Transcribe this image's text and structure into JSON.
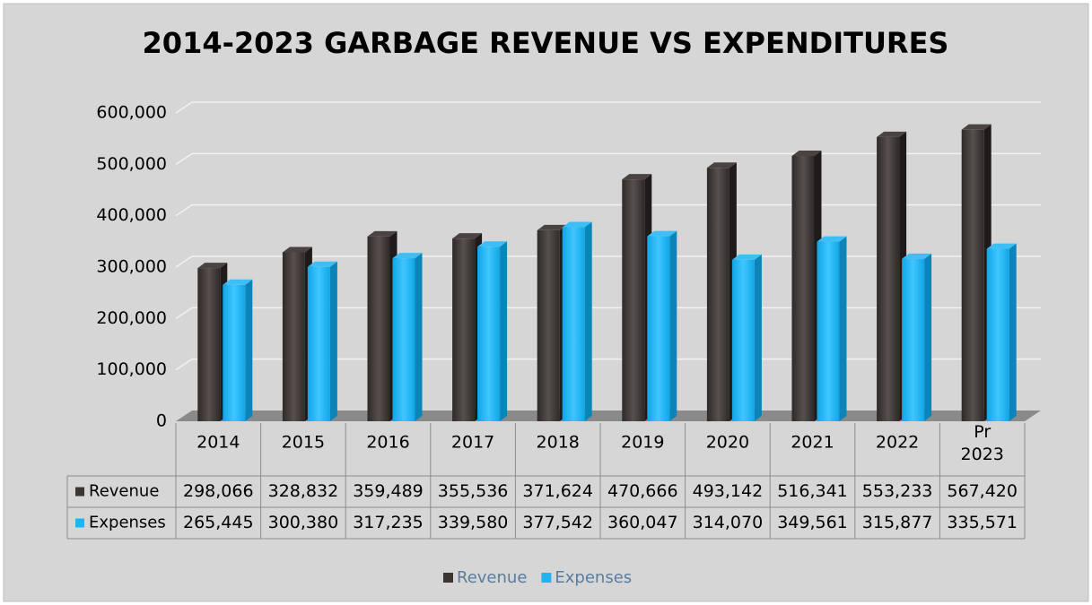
{
  "chart_data": {
    "type": "bar3d",
    "title": "2014-2023 GARBAGE REVENUE VS EXPENDITURES",
    "categories": [
      "2014",
      "2015",
      "2016",
      "2017",
      "2018",
      "2019",
      "2020",
      "2021",
      "2022",
      "Pr 2023"
    ],
    "series": [
      {
        "name": "Revenue",
        "color": "#3b3533",
        "values": [
          298066,
          328832,
          359489,
          355536,
          371624,
          470666,
          493142,
          516341,
          553233,
          567420
        ],
        "value_labels": [
          "298,066",
          "328,832",
          "359,489",
          "355,536",
          "371,624",
          "470,666",
          "493,142",
          "516,341",
          "553,233",
          "567,420"
        ]
      },
      {
        "name": "Expenses",
        "color": "#1fb4f2",
        "values": [
          265445,
          300380,
          317235,
          339580,
          377542,
          360047,
          314070,
          349561,
          315877,
          335571
        ],
        "value_labels": [
          "265,445",
          "300,380",
          "317,235",
          "339,580",
          "377,542",
          "360,047",
          "314,070",
          "349,561",
          "315,877",
          "335,571"
        ]
      }
    ],
    "ylim": [
      0,
      600000
    ],
    "yticks": [
      0,
      {
        "value": 100000,
        "label": "100,000"
      },
      {
        "value": 200000,
        "label": "200,000"
      },
      {
        "value": 300000,
        "label": "300,000"
      },
      {
        "value": 400000,
        "label": "400,000"
      },
      {
        "value": 500000,
        "label": "500,000"
      },
      {
        "value": 600000,
        "label": "600,000"
      }
    ],
    "grid": true,
    "legend": "bottom",
    "data_table": true
  }
}
